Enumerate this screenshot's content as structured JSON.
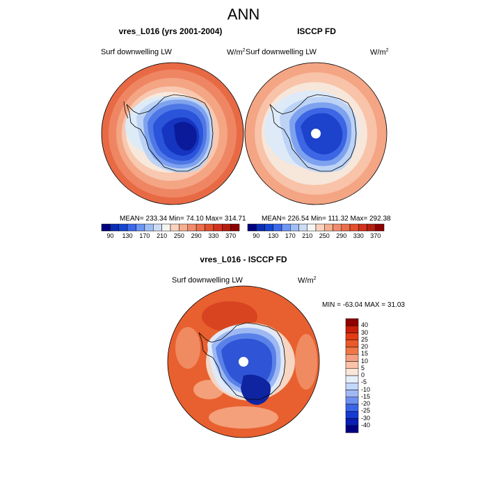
{
  "figure": {
    "title": "ANN"
  },
  "panels": [
    {
      "title": "vres_L016 (yrs 2001-2004)",
      "left_label": "Surf downwelling LW",
      "units_base": "W/m",
      "units_exp": "2",
      "stats": "MEAN= 233.34  Min=  74.10  Max= 314.71"
    },
    {
      "title": "ISCCP FD",
      "left_label": "Surf downwelling LW",
      "units_base": "W/m",
      "units_exp": "2",
      "stats": "MEAN= 226.54  Min= 111.32  Max= 292.38"
    },
    {
      "title": "vres_L016 - ISCCP FD",
      "left_label": "Surf downwelling LW",
      "units_base": "W/m",
      "units_exp": "2",
      "stats": "MIN = -63.04 MAX =  31.03"
    }
  ],
  "colorbar_abs": {
    "labels": [
      "90",
      "130",
      "170",
      "210",
      "250",
      "290",
      "330",
      "370"
    ],
    "colors": [
      "#00007f",
      "#0a2db4",
      "#1446d2",
      "#3c69eb",
      "#6e96f5",
      "#a0bef5",
      "#cddcf5",
      "#f5f5f0",
      "#fad2be",
      "#f5af91",
      "#f08c6e",
      "#eb6e4b",
      "#e1502d",
      "#d2321e",
      "#b41e0f",
      "#8c0000"
    ]
  },
  "colorbar_diff": {
    "labels": [
      "40",
      "30",
      "25",
      "20",
      "15",
      "10",
      "5",
      "0",
      "-5",
      "-10",
      "-15",
      "-20",
      "-25",
      "-30",
      "-40"
    ],
    "colors": [
      "#8c0000",
      "#c81e0a",
      "#e13c14",
      "#eb5a28",
      "#f07846",
      "#f5a082",
      "#fac3aa",
      "#fae6d7",
      "#e6eefa",
      "#c3d7fa",
      "#a0b9f5",
      "#6e91f0",
      "#3c64e6",
      "#143cd2",
      "#0a1eb4",
      "#000080"
    ]
  }
}
